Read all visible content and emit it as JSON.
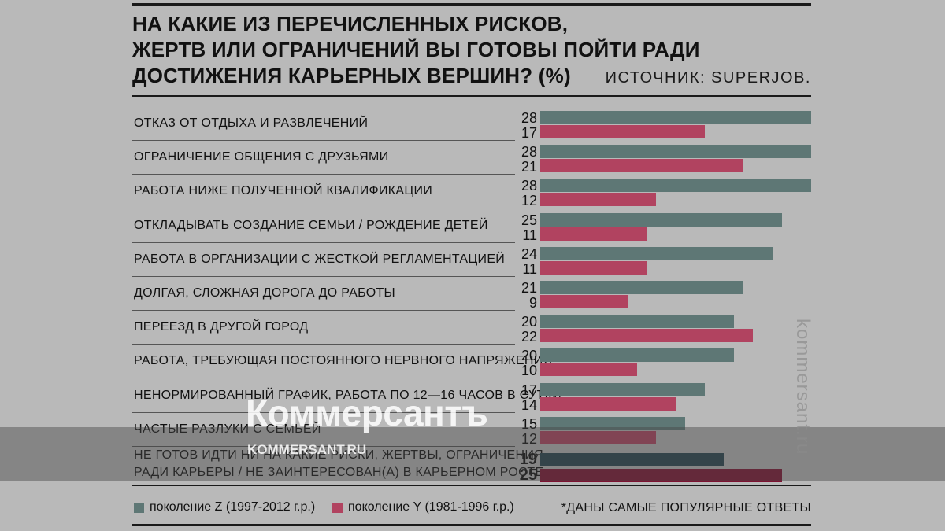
{
  "chart_data": {
    "type": "bar",
    "title": "НА КАКИЕ ИЗ ПЕРЕЧИСЛЕННЫХ РИСКОВ,\nЖЕРТВ ИЛИ ОГРАНИЧЕНИЙ ВЫ ГОТОВЫ ПОЙТИ РАДИ\nДОСТИЖЕНИЯ КАРЬЕРНЫХ ВЕРШИН? (%)",
    "source": "ИСТОЧНИК: SUPERJOB.",
    "orientation": "horizontal",
    "categories": [
      "ОТКАЗ ОТ ОТДЫХА И РАЗВЛЕЧЕНИЙ",
      "ОГРАНИЧЕНИЕ ОБЩЕНИЯ С ДРУЗЬЯМИ",
      "РАБОТА НИЖЕ ПОЛУЧЕННОЙ КВАЛИФИКАЦИИ",
      "ОТКЛАДЫВАТЬ СОЗДАНИЕ СЕМЬИ / РОЖДЕНИЕ ДЕТЕЙ",
      "РАБОТА В ОРГАНИЗАЦИИ С ЖЕСТКОЙ РЕГЛАМЕНТАЦИЕЙ",
      "ДОЛГАЯ, СЛОЖНАЯ ДОРОГА ДО РАБОТЫ",
      "ПЕРЕЕЗД В ДРУГОЙ ГОРОД",
      "РАБОТА, ТРЕБУЮЩАЯ ПОСТОЯННОГО НЕРВНОГО НАПРЯЖЕНИЯ",
      "НЕНОРМИРОВАННЫЙ ГРАФИК, РАБОТА ПО 12—16 ЧАСОВ В СУТКИ",
      "ЧАСТЫЕ РАЗЛУКИ С СЕМЬЕЙ",
      "НЕ ГОТОВ ИДТИ НИ НА КАКИЕ РИСКИ, ЖЕРТВЫ, ОГРАНИЧЕНИЯ\nРАДИ КАРЬЕРЫ / НЕ ЗАИНТЕРЕСОВАН(А) В КАРЬЕРНОМ РОСТЕ"
    ],
    "series": [
      {
        "name": "поколение Z (1997-2012 г.р.)",
        "color": "#5e7775",
        "values": [
          28,
          28,
          28,
          25,
          24,
          21,
          20,
          20,
          17,
          15,
          19
        ]
      },
      {
        "name": "поколение Y (1981-1996 г.р.)",
        "color": "#b14360",
        "values": [
          17,
          21,
          12,
          11,
          11,
          9,
          22,
          10,
          14,
          12,
          25
        ]
      }
    ],
    "highlight_last": {
      "z_color": "#26434e",
      "y_color": "#7c1231"
    },
    "xlim": [
      0,
      28
    ],
    "footnote": "*ДАНЫ САМЫЕ ПОПУЛЯРНЫЕ ОТВЕТЫ",
    "legend_position": "bottom-left"
  },
  "watermark": {
    "logo": "Коммерсантъ",
    "url": "KOMMERSANT.RU",
    "vertical": "kommersant.ru"
  }
}
